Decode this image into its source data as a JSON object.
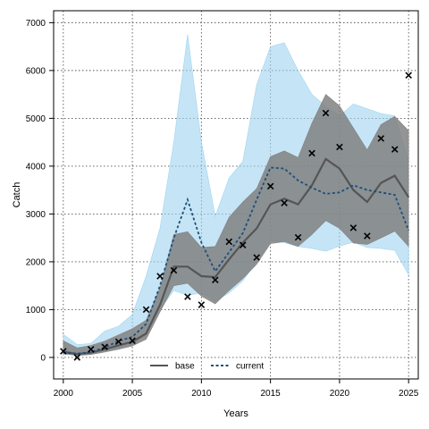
{
  "chart_data": {
    "type": "line",
    "title": "",
    "xlabel": "Years",
    "ylabel": "Catch",
    "xlim": [
      1999.3,
      2025.7
    ],
    "ylim": [
      -450,
      7250
    ],
    "x_ticks": [
      2000,
      2005,
      2010,
      2015,
      2020,
      2025
    ],
    "y_ticks": [
      0,
      1000,
      2000,
      3000,
      4000,
      5000,
      6000,
      7000
    ],
    "x_tick_labels": [
      "2000",
      "2005",
      "2010",
      "2015",
      "2020",
      "2025"
    ],
    "y_tick_labels": [
      "0",
      "1000",
      "2000",
      "3000",
      "4000",
      "5000",
      "6000",
      "7000"
    ],
    "grid": true,
    "legend_position": "bottom-center",
    "x": [
      2000,
      2001,
      2002,
      2003,
      2004,
      2005,
      2006,
      2007,
      2008,
      2009,
      2010,
      2011,
      2012,
      2013,
      2014,
      2015,
      2016,
      2017,
      2018,
      2019,
      2020,
      2021,
      2022,
      2023,
      2024,
      2025
    ],
    "observed": {
      "marker": "x",
      "values": [
        130,
        0,
        170,
        220,
        330,
        350,
        1000,
        1700,
        1820,
        1270,
        1100,
        1620,
        2420,
        2350,
        2090,
        3580,
        3230,
        2510,
        4270,
        5110,
        4400,
        2710,
        2540,
        4580,
        4350,
        5900
      ]
    },
    "series": [
      {
        "name": "base",
        "color": "#555555",
        "line_style": "solid",
        "values": [
          120,
          70,
          100,
          170,
          250,
          330,
          500,
          1100,
          1900,
          1900,
          1700,
          1680,
          2050,
          2400,
          2700,
          3200,
          3320,
          3200,
          3600,
          4150,
          3950,
          3500,
          3250,
          3650,
          3800,
          3350
        ],
        "band_color": "#8c8c8c",
        "band_lower": [
          80,
          40,
          60,
          110,
          170,
          240,
          380,
          950,
          1500,
          1550,
          1280,
          1120,
          1400,
          1650,
          1950,
          2380,
          2420,
          2320,
          2570,
          2860,
          2700,
          2390,
          2360,
          2500,
          2640,
          2320
        ],
        "band_upper": [
          350,
          200,
          250,
          340,
          470,
          600,
          780,
          1450,
          2570,
          2630,
          2300,
          2320,
          2930,
          3250,
          3530,
          4200,
          4320,
          4180,
          4900,
          5500,
          5260,
          4800,
          4340,
          4870,
          5040,
          4740
        ]
      },
      {
        "name": "current",
        "color": "#1f4e79",
        "line_style": "dashed",
        "values": [
          100,
          80,
          110,
          210,
          340,
          430,
          700,
          1500,
          2500,
          3300,
          2400,
          1800,
          2200,
          2600,
          3300,
          3970,
          3950,
          3700,
          3550,
          3420,
          3450,
          3600,
          3500,
          3450,
          3400,
          2650
        ],
        "band_color": "#9fd4f0",
        "band_lower": [
          60,
          50,
          80,
          130,
          200,
          270,
          450,
          1000,
          1400,
          1300,
          1350,
          1170,
          1350,
          1600,
          2000,
          2450,
          2400,
          2320,
          2280,
          2220,
          2330,
          2410,
          2300,
          2280,
          2240,
          1730
        ],
        "band_upper": [
          480,
          270,
          290,
          550,
          650,
          900,
          1700,
          2700,
          4500,
          6750,
          4500,
          2950,
          3750,
          4100,
          5700,
          6500,
          6580,
          6000,
          5500,
          5250,
          5050,
          5300,
          5200,
          5100,
          5050,
          4100
        ]
      }
    ]
  }
}
